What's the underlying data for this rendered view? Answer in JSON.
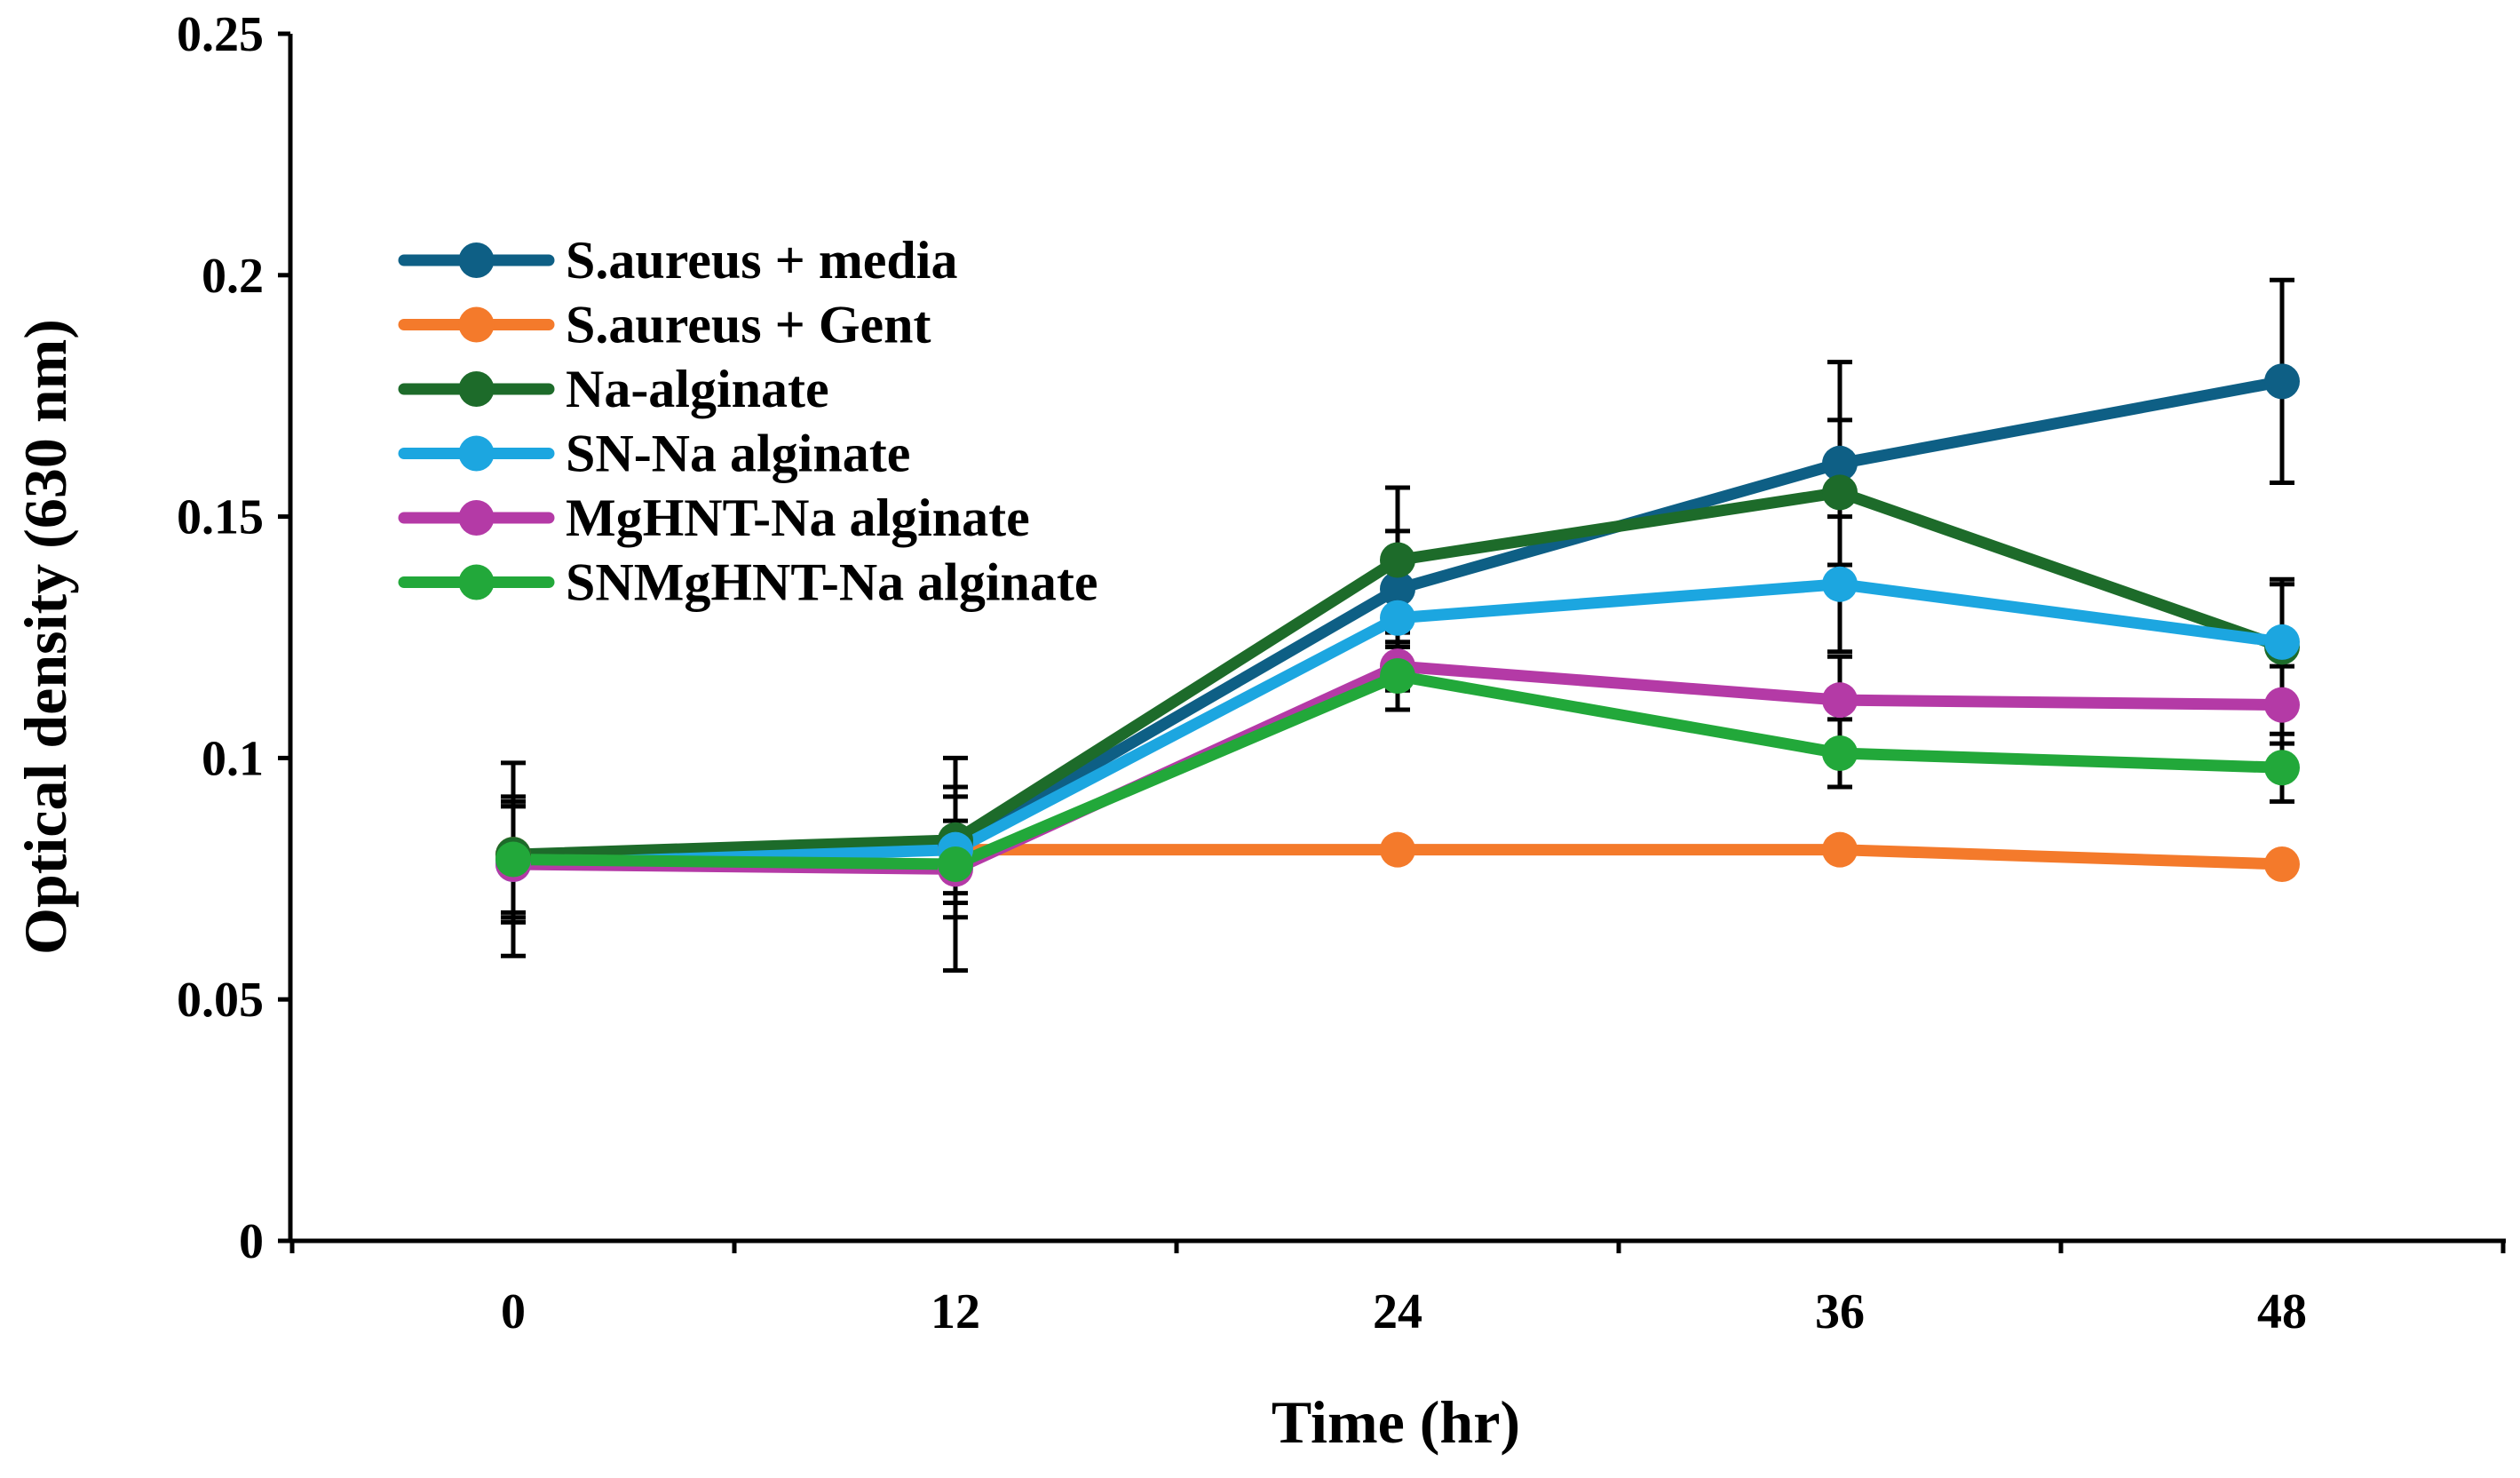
{
  "chart_data": {
    "type": "line",
    "title": "",
    "xlabel": "Time (hr)",
    "ylabel": "Optical density (630 nm)",
    "categories": [
      "0",
      "12",
      "24",
      "36",
      "48"
    ],
    "x": [
      0,
      12,
      24,
      36,
      48
    ],
    "xlim": [
      -6,
      54
    ],
    "ylim": [
      0,
      0.25
    ],
    "yticks": [
      0,
      0.05,
      0.1,
      0.15,
      0.2,
      0.25
    ],
    "ytick_labels": [
      "0",
      "0.05",
      "0.1",
      "0.15",
      "0.2",
      "0.25"
    ],
    "grid": false,
    "legend_position": "top-left",
    "series": [
      {
        "name": "S.aureus + media",
        "color": "#0e5f85",
        "values": [
          0.079,
          0.082,
          0.135,
          0.161,
          0.178
        ],
        "errors": [
          0.012,
          0.012,
          0.012,
          0.021,
          0.021
        ]
      },
      {
        "name": "S.aureus + Gent",
        "color": "#f47a2b",
        "values": [
          0.08,
          0.081,
          0.081,
          0.081,
          0.078
        ],
        "errors": [
          0,
          0,
          0,
          0,
          0
        ]
      },
      {
        "name": "Na-alginate",
        "color": "#1d6b2a",
        "values": [
          0.08,
          0.083,
          0.141,
          0.155,
          0.123
        ],
        "errors": [
          0.012,
          0.011,
          0.015,
          0.015,
          0.013
        ]
      },
      {
        "name": "SN-Na alginate",
        "color": "#1ca6e0",
        "values": [
          0.078,
          0.081,
          0.129,
          0.136,
          0.124
        ],
        "errors": [
          0.012,
          0.011,
          0.006,
          0.014,
          0.013
        ]
      },
      {
        "name": "MgHNT-Na alginate",
        "color": "#b43aa6",
        "values": [
          0.078,
          0.077,
          0.119,
          0.112,
          0.111
        ],
        "errors": [
          0.012,
          0.01,
          0.005,
          0.009,
          0.008
        ]
      },
      {
        "name": "SNMgHNT-Na alginate",
        "color": "#22a83a",
        "values": [
          0.079,
          0.078,
          0.117,
          0.101,
          0.098
        ],
        "errors": [
          0.02,
          0.022,
          0.007,
          0.007,
          0.007
        ]
      }
    ]
  }
}
